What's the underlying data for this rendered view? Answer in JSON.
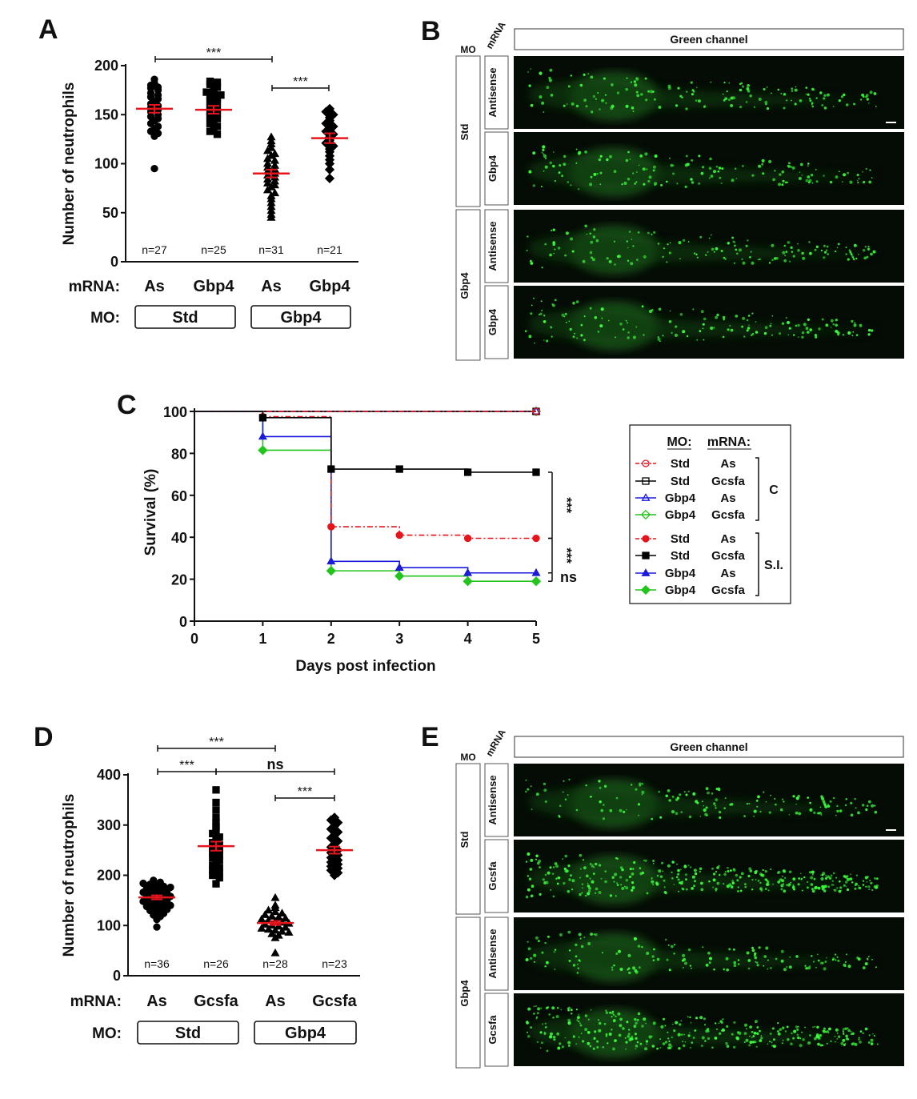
{
  "panels": {
    "A": "A",
    "B": "B",
    "C": "C",
    "D": "D",
    "E": "E"
  },
  "panelA": {
    "ylabel": "Number of neutrophils",
    "row_labels": {
      "mrna": "mRNA:",
      "mo": "MO:"
    },
    "mrna": [
      "As",
      "Gbp4",
      "As",
      "Gbp4"
    ],
    "mo_groups": [
      "Std",
      "Gbp4"
    ],
    "n": [
      "n=27",
      "n=25",
      "n=31",
      "n=21"
    ],
    "sig": [
      "***",
      "***"
    ]
  },
  "panelB": {
    "channel": "Green channel",
    "mo_header": "MO",
    "mrna_header": "mRNA",
    "mo_labels": [
      "Std",
      "Gbp4"
    ],
    "mrna_labels": [
      "Antisense",
      "Gbp4",
      "Antisense",
      "Gbp4"
    ]
  },
  "panelC": {
    "legend_headers": [
      "MO:",
      "mRNA:"
    ],
    "legend_rows": [
      {
        "mo": "Std",
        "mrna": "As"
      },
      {
        "mo": "Std",
        "mrna": "Gcsfa"
      },
      {
        "mo": "Gbp4",
        "mrna": "As"
      },
      {
        "mo": "Gbp4",
        "mrna": "Gcsfa"
      },
      {
        "mo": "Std",
        "mrna": "As"
      },
      {
        "mo": "Std",
        "mrna": "Gcsfa"
      },
      {
        "mo": "Gbp4",
        "mrna": "As"
      },
      {
        "mo": "Gbp4",
        "mrna": "Gcsfa"
      }
    ],
    "bracket_labels": [
      "C",
      "S.I."
    ],
    "sig": [
      "***",
      "***",
      "ns"
    ]
  },
  "panelD": {
    "ylabel": "Number of neutrophils",
    "row_labels": {
      "mrna": "mRNA:",
      "mo": "MO:"
    },
    "mrna": [
      "As",
      "Gcsfa",
      "As",
      "Gcsfa"
    ],
    "mo_groups": [
      "Std",
      "Gbp4"
    ],
    "n": [
      "n=36",
      "n=26",
      "n=28",
      "n=23"
    ],
    "sig": [
      "***",
      "***",
      "ns",
      "***"
    ]
  },
  "panelE": {
    "channel": "Green channel",
    "mo_header": "MO",
    "mrna_header": "mRNA",
    "mo_labels": [
      "Std",
      "Gbp4"
    ],
    "mrna_labels": [
      "Antisense",
      "Gcsfa",
      "Antisense",
      "Gcsfa"
    ]
  },
  "colors": {
    "mean_line": "#e8141c",
    "red": "#e8141c",
    "black": "#000000",
    "blue": "#1a1adb",
    "green": "#23c41c",
    "fluor": "#3cff3c"
  },
  "chart_data": [
    {
      "type": "scatter",
      "panel": "A",
      "ylabel": "Number of neutrophils",
      "ylim": [
        0,
        200
      ],
      "yticks": [
        0,
        50,
        100,
        150,
        200
      ],
      "categories": [
        "Std/As",
        "Std/Gbp4",
        "Gbp4/As",
        "Gbp4/Gbp4"
      ],
      "series": [
        {
          "marker": "circle",
          "mean": 156,
          "sem": 4,
          "values": [
            186,
            182,
            180,
            178,
            177,
            175,
            172,
            170,
            168,
            166,
            163,
            161,
            159,
            157,
            155,
            153,
            150,
            148,
            146,
            144,
            141,
            138,
            136,
            133,
            131,
            128,
            95
          ]
        },
        {
          "marker": "square",
          "mean": 155,
          "sem": 4,
          "values": [
            184,
            183,
            181,
            178,
            176,
            173,
            171,
            169,
            166,
            164,
            162,
            160,
            157,
            155,
            153,
            151,
            148,
            146,
            144,
            141,
            138,
            135,
            133,
            130,
            170
          ]
        },
        {
          "marker": "triangle",
          "mean": 90,
          "sem": 4,
          "values": [
            127,
            123,
            120,
            116,
            113,
            110,
            108,
            105,
            103,
            100,
            98,
            96,
            94,
            92,
            90,
            88,
            86,
            84,
            82,
            80,
            78,
            76,
            73,
            70,
            67,
            64,
            60,
            56,
            52,
            48,
            45
          ]
        },
        {
          "marker": "diamond",
          "mean": 126,
          "sem": 5,
          "values": [
            156,
            153,
            150,
            147,
            144,
            141,
            138,
            135,
            133,
            130,
            127,
            124,
            121,
            118,
            115,
            112,
            108,
            104,
            100,
            94,
            85
          ]
        }
      ],
      "n": [
        27,
        25,
        31,
        21
      ]
    },
    {
      "type": "line",
      "panel": "C",
      "xlabel": "Days post infection",
      "ylabel": "Survival (%)",
      "xlim": [
        0,
        5
      ],
      "ylim": [
        0,
        100
      ],
      "xticks": [
        0,
        1,
        2,
        3,
        4,
        5
      ],
      "yticks": [
        0,
        20,
        40,
        60,
        80,
        100
      ],
      "series": [
        {
          "mo": "Std",
          "mrna": "As",
          "group": "C",
          "color": "#e8141c",
          "marker": "circle-open",
          "dash": true,
          "x": [
            0,
            1,
            2,
            3,
            4,
            5
          ],
          "y": [
            100,
            100,
            100,
            100,
            100,
            100
          ]
        },
        {
          "mo": "Std",
          "mrna": "Gcsfa",
          "group": "C",
          "color": "#000000",
          "marker": "square-open",
          "dash": false,
          "x": [
            0,
            1,
            2,
            3,
            4,
            5
          ],
          "y": [
            100,
            100,
            100,
            100,
            100,
            100
          ]
        },
        {
          "mo": "Gbp4",
          "mrna": "As",
          "group": "C",
          "color": "#1a1adb",
          "marker": "triangle-open",
          "dash": false,
          "x": [
            0,
            1,
            2,
            3,
            4,
            5
          ],
          "y": [
            100,
            100,
            100,
            100,
            100,
            100
          ]
        },
        {
          "mo": "Gbp4",
          "mrna": "Gcsfa",
          "group": "C",
          "color": "#23c41c",
          "marker": "diamond-open",
          "dash": false,
          "x": [
            0,
            1,
            2,
            3,
            4,
            5
          ],
          "y": [
            100,
            100,
            100,
            100,
            100,
            100
          ]
        },
        {
          "mo": "Std",
          "mrna": "As",
          "group": "S.I.",
          "color": "#e8141c",
          "marker": "circle",
          "dash": true,
          "x": [
            0,
            1,
            2,
            3,
            4,
            5
          ],
          "y": [
            100,
            97.5,
            45,
            41,
            39.5,
            39.5
          ]
        },
        {
          "mo": "Std",
          "mrna": "Gcsfa",
          "group": "S.I.",
          "color": "#000000",
          "marker": "square",
          "dash": false,
          "x": [
            0,
            1,
            2,
            3,
            4,
            5
          ],
          "y": [
            100,
            97,
            72.5,
            72.5,
            71,
            71
          ]
        },
        {
          "mo": "Gbp4",
          "mrna": "As",
          "group": "S.I.",
          "color": "#1a1adb",
          "marker": "triangle",
          "dash": false,
          "x": [
            0,
            1,
            2,
            3,
            4,
            5
          ],
          "y": [
            100,
            88,
            28.5,
            25.5,
            23,
            23
          ]
        },
        {
          "mo": "Gbp4",
          "mrna": "Gcsfa",
          "group": "S.I.",
          "color": "#23c41c",
          "marker": "diamond",
          "dash": false,
          "x": [
            0,
            1,
            2,
            3,
            4,
            5
          ],
          "y": [
            100,
            81.5,
            24,
            21.5,
            19,
            19
          ]
        }
      ]
    },
    {
      "type": "scatter",
      "panel": "D",
      "ylabel": "Number of neutrophils",
      "ylim": [
        0,
        400
      ],
      "yticks": [
        0,
        100,
        200,
        300,
        400
      ],
      "categories": [
        "Std/As",
        "Std/Gcsfa",
        "Gbp4/As",
        "Gbp4/Gcsfa"
      ],
      "series": [
        {
          "marker": "circle",
          "mean": 156,
          "sem": 4,
          "values": [
            190,
            186,
            184,
            182,
            180,
            178,
            176,
            174,
            172,
            170,
            168,
            166,
            164,
            162,
            160,
            158,
            156,
            154,
            152,
            150,
            148,
            146,
            144,
            142,
            140,
            138,
            136,
            134,
            132,
            130,
            127,
            124,
            121,
            118,
            112,
            97
          ]
        },
        {
          "marker": "square",
          "mean": 258,
          "sem": 9,
          "values": [
            370,
            345,
            330,
            315,
            305,
            297,
            290,
            283,
            276,
            270,
            265,
            260,
            255,
            250,
            245,
            240,
            235,
            230,
            225,
            220,
            215,
            210,
            205,
            200,
            195,
            183
          ]
        },
        {
          "marker": "triangle",
          "mean": 105,
          "sem": 4,
          "values": [
            155,
            140,
            135,
            130,
            127,
            124,
            121,
            118,
            116,
            114,
            112,
            110,
            108,
            106,
            104,
            102,
            100,
            98,
            96,
            94,
            92,
            90,
            88,
            86,
            83,
            80,
            75,
            45
          ]
        },
        {
          "marker": "diamond",
          "mean": 250,
          "sem": 7,
          "values": [
            315,
            310,
            305,
            298,
            292,
            286,
            280,
            274,
            268,
            262,
            256,
            250,
            245,
            240,
            235,
            230,
            226,
            222,
            218,
            214,
            210,
            205,
            200
          ]
        }
      ],
      "n": [
        36,
        26,
        28,
        23
      ]
    }
  ]
}
